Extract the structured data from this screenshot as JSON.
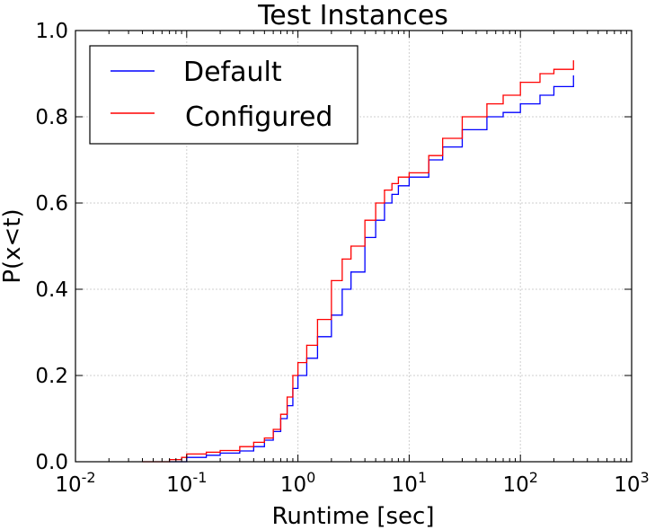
{
  "colors": {
    "default_series": "#0000ff",
    "configured_series": "#ff0000",
    "axes": "#000000",
    "grid": "#cfcfcf"
  },
  "chart_data": {
    "type": "line",
    "title": "Test Instances",
    "xlabel": "Runtime [sec]",
    "ylabel": "P(x<t)",
    "x_scale": "log",
    "xlim": [
      0.01,
      1000
    ],
    "ylim": [
      0.0,
      1.0
    ],
    "x_ticks": [
      {
        "base": "10",
        "exp": "-2",
        "value": 0.01
      },
      {
        "base": "10",
        "exp": "-1",
        "value": 0.1
      },
      {
        "base": "10",
        "exp": "0",
        "value": 1
      },
      {
        "base": "10",
        "exp": "1",
        "value": 10
      },
      {
        "base": "10",
        "exp": "2",
        "value": 100
      },
      {
        "base": "10",
        "exp": "3",
        "value": 1000
      }
    ],
    "y_ticks": [
      "0.0",
      "0.2",
      "0.4",
      "0.6",
      "0.8",
      "1.0"
    ],
    "grid": true,
    "legend_position": "top-left",
    "series": [
      {
        "name": "Default",
        "color": "#0000ff",
        "x": [
          0.07,
          0.1,
          0.15,
          0.2,
          0.3,
          0.4,
          0.5,
          0.6,
          0.7,
          0.8,
          0.9,
          1.0,
          1.2,
          1.5,
          2.0,
          2.5,
          3.0,
          4.0,
          5.0,
          6.0,
          7.0,
          8.0,
          10,
          15,
          20,
          30,
          50,
          70,
          100,
          150,
          200,
          300
        ],
        "y": [
          0.0,
          0.01,
          0.015,
          0.02,
          0.025,
          0.035,
          0.05,
          0.07,
          0.1,
          0.13,
          0.17,
          0.2,
          0.24,
          0.29,
          0.34,
          0.4,
          0.44,
          0.52,
          0.56,
          0.6,
          0.62,
          0.64,
          0.66,
          0.7,
          0.73,
          0.77,
          0.8,
          0.81,
          0.83,
          0.85,
          0.87,
          0.895
        ]
      },
      {
        "name": "Configured",
        "color": "#ff0000",
        "x": [
          0.04,
          0.07,
          0.09,
          0.1,
          0.15,
          0.2,
          0.3,
          0.4,
          0.5,
          0.6,
          0.7,
          0.8,
          0.9,
          1.0,
          1.2,
          1.5,
          2.0,
          2.5,
          3.0,
          4.0,
          5.0,
          6.0,
          7.0,
          8.0,
          10,
          15,
          20,
          30,
          50,
          70,
          100,
          150,
          200,
          300
        ],
        "y": [
          0.0,
          0.005,
          0.01,
          0.018,
          0.022,
          0.026,
          0.035,
          0.045,
          0.055,
          0.075,
          0.11,
          0.15,
          0.2,
          0.23,
          0.27,
          0.33,
          0.42,
          0.47,
          0.5,
          0.56,
          0.6,
          0.63,
          0.645,
          0.66,
          0.67,
          0.71,
          0.75,
          0.8,
          0.83,
          0.85,
          0.88,
          0.9,
          0.91,
          0.93
        ]
      }
    ]
  }
}
